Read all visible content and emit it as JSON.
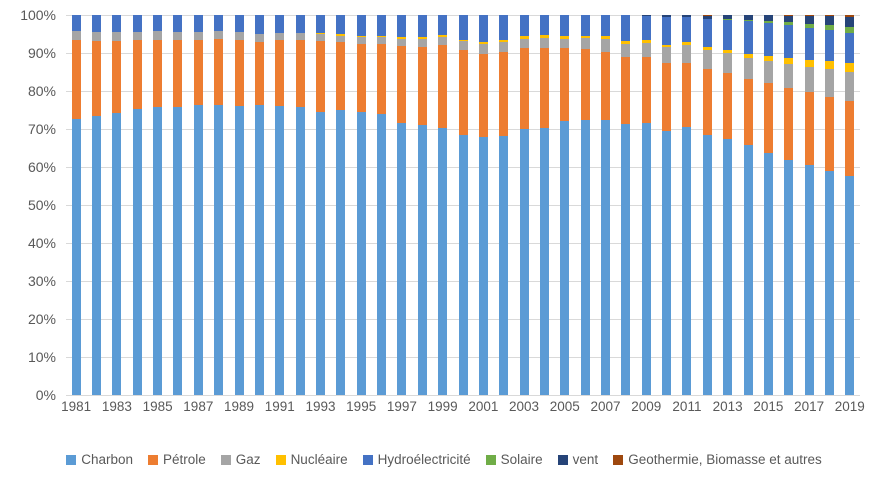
{
  "colors": {
    "background": "#FFFFFF",
    "gridline": "#D9D9D9",
    "axis_text": "#595959"
  },
  "chart_data": {
    "type": "bar",
    "stacked": true,
    "percent_stacked": true,
    "title": "",
    "xlabel": "",
    "ylabel": "",
    "ylim": [
      0,
      100
    ],
    "grid": true,
    "legend_position": "bottom",
    "y_ticks": [
      "0%",
      "10%",
      "20%",
      "30%",
      "40%",
      "50%",
      "60%",
      "70%",
      "80%",
      "90%",
      "100%"
    ],
    "x": [
      1981,
      1982,
      1983,
      1984,
      1985,
      1986,
      1987,
      1988,
      1989,
      1990,
      1991,
      1992,
      1993,
      1994,
      1995,
      1996,
      1997,
      1998,
      1999,
      2000,
      2001,
      2002,
      2003,
      2004,
      2005,
      2006,
      2007,
      2008,
      2009,
      2010,
      2011,
      2012,
      2013,
      2014,
      2015,
      2016,
      2017,
      2018,
      2019
    ],
    "x_labeled_ticks": [
      "1981",
      "1983",
      "1985",
      "1987",
      "1989",
      "1991",
      "1993",
      "1995",
      "1997",
      "1999",
      "2001",
      "2003",
      "2005",
      "2007",
      "2009",
      "2011",
      "2013",
      "2015",
      "2017",
      "2019"
    ],
    "series": [
      {
        "name": "Charbon",
        "key": "charbon",
        "color": "#5B9BD5",
        "values": [
          72.7,
          73.5,
          74.2,
          75.3,
          75.9,
          75.9,
          76.3,
          76.3,
          76.1,
          76.2,
          76.0,
          75.7,
          74.6,
          74.9,
          74.4,
          73.9,
          71.6,
          71.0,
          70.3,
          68.5,
          67.8,
          68.2,
          70.1,
          70.3,
          72.0,
          72.4,
          72.4,
          71.2,
          71.6,
          69.5,
          70.4,
          68.5,
          67.4,
          65.8,
          63.7,
          61.9,
          60.6,
          59.0,
          57.6
        ]
      },
      {
        "name": "Pétrole",
        "key": "petrole",
        "color": "#ED7D31",
        "values": [
          20.6,
          19.6,
          18.9,
          18.0,
          17.6,
          17.5,
          17.2,
          17.3,
          17.4,
          16.8,
          17.4,
          17.8,
          18.6,
          17.9,
          17.9,
          18.4,
          20.3,
          20.7,
          21.8,
          22.2,
          22.0,
          22.0,
          21.1,
          21.0,
          19.2,
          18.6,
          18.0,
          17.7,
          17.4,
          17.8,
          17.1,
          17.4,
          17.3,
          17.4,
          18.3,
          18.9,
          19.2,
          19.5,
          19.7
        ]
      },
      {
        "name": "Gaz",
        "key": "gaz",
        "color": "#A5A5A5",
        "values": [
          2.6,
          2.5,
          2.4,
          2.3,
          2.2,
          2.2,
          2.1,
          2.1,
          2.0,
          2.1,
          2.0,
          1.9,
          1.9,
          1.8,
          1.8,
          1.8,
          1.9,
          2.1,
          2.2,
          2.4,
          2.6,
          2.6,
          2.6,
          2.6,
          2.6,
          2.9,
          3.3,
          3.6,
          3.7,
          4.2,
          4.6,
          4.8,
          5.2,
          5.6,
          5.8,
          6.2,
          6.6,
          7.4,
          7.8
        ]
      },
      {
        "name": "Nucléaire",
        "key": "nucleaire",
        "color": "#FFC000",
        "values": [
          0,
          0,
          0,
          0,
          0,
          0,
          0,
          0,
          0,
          0,
          0,
          0,
          0.1,
          0.4,
          0.4,
          0.4,
          0.4,
          0.4,
          0.4,
          0.4,
          0.5,
          0.6,
          0.8,
          0.8,
          0.8,
          0.7,
          0.7,
          0.8,
          0.8,
          0.7,
          0.7,
          0.8,
          0.9,
          1.0,
          1.3,
          1.6,
          1.8,
          2.0,
          2.2
        ]
      },
      {
        "name": "Hydroélectricité",
        "key": "hydroelectricite",
        "color": "#4472C4",
        "values": [
          4.1,
          4.4,
          4.5,
          4.4,
          4.3,
          4.4,
          4.4,
          4.3,
          4.5,
          4.9,
          4.6,
          4.6,
          4.8,
          5.0,
          5.5,
          5.5,
          5.8,
          5.8,
          5.3,
          6.5,
          7.1,
          6.6,
          5.4,
          5.3,
          5.4,
          5.4,
          5.5,
          6.6,
          6.3,
          7.3,
          6.6,
          7.4,
          7.9,
          8.7,
          8.9,
          8.9,
          8.5,
          8.2,
          8.0
        ]
      },
      {
        "name": "Solaire",
        "key": "solaire",
        "color": "#70AD47",
        "values": [
          0,
          0,
          0,
          0,
          0,
          0,
          0,
          0,
          0,
          0,
          0,
          0,
          0,
          0,
          0,
          0,
          0,
          0,
          0,
          0,
          0,
          0,
          0,
          0,
          0,
          0,
          0,
          0,
          0,
          0,
          0,
          0.1,
          0.2,
          0.3,
          0.5,
          0.7,
          1.0,
          1.4,
          1.6
        ]
      },
      {
        "name": "vent",
        "key": "vent",
        "color": "#264478",
        "values": [
          0,
          0,
          0,
          0,
          0,
          0,
          0,
          0,
          0,
          0,
          0,
          0,
          0,
          0,
          0,
          0,
          0,
          0,
          0,
          0,
          0,
          0,
          0,
          0,
          0,
          0,
          0.1,
          0.1,
          0.2,
          0.4,
          0.5,
          0.8,
          1.0,
          1.1,
          1.4,
          1.6,
          2.1,
          2.3,
          2.7
        ]
      },
      {
        "name": "Geothermie, Biomasse et autres",
        "key": "geothermie-biomasse-et-autres",
        "color": "#9E480E",
        "values": [
          0,
          0,
          0,
          0,
          0,
          0,
          0,
          0,
          0,
          0,
          0,
          0,
          0,
          0,
          0,
          0,
          0,
          0,
          0,
          0,
          0,
          0,
          0,
          0,
          0,
          0,
          0,
          0,
          0,
          0.1,
          0.1,
          0.2,
          0.1,
          0.1,
          0.1,
          0.2,
          0.2,
          0.2,
          0.4
        ]
      }
    ]
  }
}
